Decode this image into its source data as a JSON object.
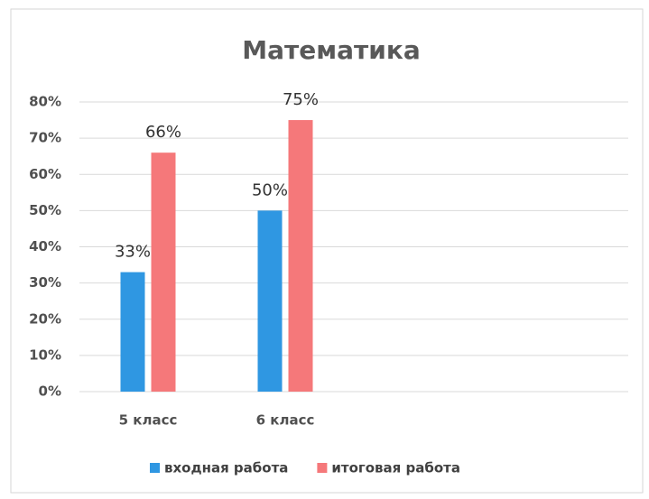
{
  "chart_data": {
    "type": "bar",
    "title": "Математика",
    "categories": [
      "5 класс",
      "6 класс",
      null,
      null
    ],
    "series": [
      {
        "name": "входная работа",
        "color": "#2f97e2",
        "values": [
          33,
          50,
          null,
          null
        ],
        "value_labels": [
          "33%",
          "50%",
          null,
          null
        ]
      },
      {
        "name": "итоговая работа",
        "color": "#f5787a",
        "values": [
          66,
          75,
          null,
          null
        ],
        "value_labels": [
          "66%",
          "75%",
          null,
          null
        ]
      }
    ],
    "ylim": [
      0,
      80
    ],
    "yticks": [
      {
        "value": 0,
        "label": "0%"
      },
      {
        "value": 10,
        "label": "10%"
      },
      {
        "value": 20,
        "label": "20%"
      },
      {
        "value": 30,
        "label": "30%"
      },
      {
        "value": 40,
        "label": "40%"
      },
      {
        "value": 50,
        "label": "50%"
      },
      {
        "value": 60,
        "label": "60%"
      },
      {
        "value": 70,
        "label": "70%"
      },
      {
        "value": 80,
        "label": "80%"
      }
    ],
    "grid": true,
    "legend": "bottom"
  }
}
